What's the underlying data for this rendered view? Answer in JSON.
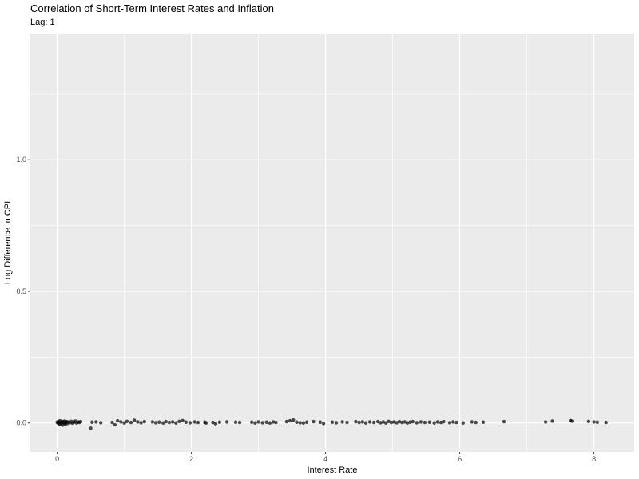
{
  "chart_data": {
    "type": "scatter",
    "title": "Correlation of Short-Term Interest Rates and Inflation",
    "subtitle": "Lag: 1",
    "xlabel": "Interest Rate",
    "ylabel": "Log Difference in CPI",
    "xlim": [
      -0.4,
      8.6
    ],
    "ylim": [
      -0.11,
      1.48
    ],
    "x_ticks": [
      0,
      2,
      4,
      6,
      8
    ],
    "x_tick_labels": [
      "0",
      "2",
      "4",
      "6",
      "8"
    ],
    "y_ticks": [
      0.0,
      0.5,
      1.0
    ],
    "y_tick_labels": [
      "0.0",
      "0.5",
      "1.0"
    ],
    "grid": true,
    "colors": {
      "panel": "#ebebeb",
      "grid": "#ffffff",
      "point": "#000000"
    },
    "points": [
      {
        "x": 0.0,
        "y": 0.003
      },
      {
        "x": 0.01,
        "y": 0.0
      },
      {
        "x": 0.02,
        "y": 0.005
      },
      {
        "x": 0.03,
        "y": -0.006
      },
      {
        "x": 0.04,
        "y": 0.008
      },
      {
        "x": 0.05,
        "y": -0.003
      },
      {
        "x": 0.06,
        "y": 0.002
      },
      {
        "x": 0.07,
        "y": 0.006
      },
      {
        "x": 0.08,
        "y": -0.008
      },
      {
        "x": 0.09,
        "y": 0.004
      },
      {
        "x": 0.1,
        "y": 0.0
      },
      {
        "x": 0.11,
        "y": 0.007
      },
      {
        "x": 0.12,
        "y": -0.004
      },
      {
        "x": 0.13,
        "y": 0.003
      },
      {
        "x": 0.14,
        "y": 0.005
      },
      {
        "x": 0.15,
        "y": -0.002
      },
      {
        "x": 0.17,
        "y": 0.004
      },
      {
        "x": 0.19,
        "y": 0.001
      },
      {
        "x": 0.21,
        "y": 0.006
      },
      {
        "x": 0.23,
        "y": -0.001
      },
      {
        "x": 0.25,
        "y": 0.003
      },
      {
        "x": 0.27,
        "y": 0.007
      },
      {
        "x": 0.29,
        "y": 0.0
      },
      {
        "x": 0.31,
        "y": 0.004
      },
      {
        "x": 0.33,
        "y": 0.002
      },
      {
        "x": 0.35,
        "y": 0.005
      },
      {
        "x": 0.5,
        "y": -0.02
      },
      {
        "x": 0.52,
        "y": 0.003
      },
      {
        "x": 0.58,
        "y": 0.004
      },
      {
        "x": 0.65,
        "y": 0.001
      },
      {
        "x": 0.82,
        "y": 0.002
      },
      {
        "x": 0.86,
        "y": -0.007
      },
      {
        "x": 0.9,
        "y": 0.008
      },
      {
        "x": 0.95,
        "y": 0.004
      },
      {
        "x": 1.0,
        "y": 0.0
      },
      {
        "x": 1.04,
        "y": 0.006
      },
      {
        "x": 1.1,
        "y": 0.002
      },
      {
        "x": 1.15,
        "y": 0.01
      },
      {
        "x": 1.2,
        "y": 0.004
      },
      {
        "x": 1.25,
        "y": 0.001
      },
      {
        "x": 1.3,
        "y": 0.005
      },
      {
        "x": 1.42,
        "y": 0.004
      },
      {
        "x": 1.47,
        "y": 0.001
      },
      {
        "x": 1.52,
        "y": 0.003
      },
      {
        "x": 1.58,
        "y": 0.0
      },
      {
        "x": 1.62,
        "y": 0.005
      },
      {
        "x": 1.67,
        "y": 0.002
      },
      {
        "x": 1.72,
        "y": 0.004
      },
      {
        "x": 1.77,
        "y": 0.0
      },
      {
        "x": 1.82,
        "y": 0.006
      },
      {
        "x": 1.87,
        "y": 0.009
      },
      {
        "x": 1.92,
        "y": 0.003
      },
      {
        "x": 1.98,
        "y": 0.001
      },
      {
        "x": 2.05,
        "y": 0.004
      },
      {
        "x": 2.1,
        "y": 0.002
      },
      {
        "x": 2.2,
        "y": 0.003
      },
      {
        "x": 2.22,
        "y": 0.0
      },
      {
        "x": 2.32,
        "y": 0.002
      },
      {
        "x": 2.36,
        "y": -0.003
      },
      {
        "x": 2.42,
        "y": 0.003
      },
      {
        "x": 2.53,
        "y": 0.004
      },
      {
        "x": 2.66,
        "y": 0.003
      },
      {
        "x": 2.72,
        "y": 0.002
      },
      {
        "x": 2.9,
        "y": 0.003
      },
      {
        "x": 2.95,
        "y": 0.0
      },
      {
        "x": 3.0,
        "y": 0.004
      },
      {
        "x": 3.06,
        "y": 0.001
      },
      {
        "x": 3.12,
        "y": 0.003
      },
      {
        "x": 3.17,
        "y": 0.0
      },
      {
        "x": 3.22,
        "y": 0.004
      },
      {
        "x": 3.26,
        "y": 0.002
      },
      {
        "x": 3.42,
        "y": 0.005
      },
      {
        "x": 3.47,
        "y": 0.008
      },
      {
        "x": 3.52,
        "y": 0.011
      },
      {
        "x": 3.57,
        "y": 0.003
      },
      {
        "x": 3.62,
        "y": 0.001
      },
      {
        "x": 3.67,
        "y": 0.0
      },
      {
        "x": 3.72,
        "y": 0.003
      },
      {
        "x": 3.82,
        "y": 0.005
      },
      {
        "x": 3.92,
        "y": 0.003
      },
      {
        "x": 3.97,
        "y": -0.002
      },
      {
        "x": 4.1,
        "y": 0.003
      },
      {
        "x": 4.16,
        "y": 0.001
      },
      {
        "x": 4.25,
        "y": 0.004
      },
      {
        "x": 4.32,
        "y": 0.002
      },
      {
        "x": 4.45,
        "y": 0.005
      },
      {
        "x": 4.5,
        "y": 0.002
      },
      {
        "x": 4.55,
        "y": 0.004
      },
      {
        "x": 4.6,
        "y": 0.0
      },
      {
        "x": 4.66,
        "y": 0.004
      },
      {
        "x": 4.72,
        "y": 0.002
      },
      {
        "x": 4.78,
        "y": 0.005
      },
      {
        "x": 4.82,
        "y": 0.001
      },
      {
        "x": 4.86,
        "y": 0.004
      },
      {
        "x": 4.9,
        "y": 0.0
      },
      {
        "x": 4.94,
        "y": 0.006
      },
      {
        "x": 4.98,
        "y": 0.002
      },
      {
        "x": 5.02,
        "y": 0.004
      },
      {
        "x": 5.06,
        "y": 0.001
      },
      {
        "x": 5.1,
        "y": 0.005
      },
      {
        "x": 5.14,
        "y": 0.002
      },
      {
        "x": 5.18,
        "y": 0.004
      },
      {
        "x": 5.22,
        "y": 0.0
      },
      {
        "x": 5.26,
        "y": 0.003
      },
      {
        "x": 5.3,
        "y": 0.005
      },
      {
        "x": 5.36,
        "y": 0.001
      },
      {
        "x": 5.42,
        "y": 0.004
      },
      {
        "x": 5.48,
        "y": 0.002
      },
      {
        "x": 5.55,
        "y": 0.003
      },
      {
        "x": 5.62,
        "y": 0.0
      },
      {
        "x": 5.67,
        "y": 0.004
      },
      {
        "x": 5.72,
        "y": 0.002
      },
      {
        "x": 5.76,
        "y": 0.005
      },
      {
        "x": 5.85,
        "y": 0.001
      },
      {
        "x": 5.9,
        "y": 0.004
      },
      {
        "x": 5.95,
        "y": 0.002
      },
      {
        "x": 6.05,
        "y": 0.0
      },
      {
        "x": 6.18,
        "y": 0.004
      },
      {
        "x": 6.24,
        "y": 0.002
      },
      {
        "x": 6.35,
        "y": 0.003
      },
      {
        "x": 6.66,
        "y": 0.005
      },
      {
        "x": 7.28,
        "y": 0.004
      },
      {
        "x": 7.38,
        "y": 0.007
      },
      {
        "x": 7.65,
        "y": 0.009
      },
      {
        "x": 7.67,
        "y": 0.007
      },
      {
        "x": 7.92,
        "y": 0.006
      },
      {
        "x": 8.0,
        "y": 0.004
      },
      {
        "x": 8.05,
        "y": 0.003
      },
      {
        "x": 8.18,
        "y": 0.002
      }
    ]
  }
}
